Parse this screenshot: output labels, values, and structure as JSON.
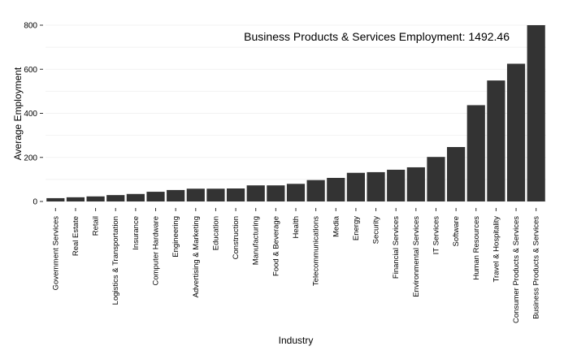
{
  "chart_data": {
    "type": "bar",
    "title": "",
    "xlabel": "Industry",
    "ylabel": "Average Employment",
    "ylim": [
      -30,
      830
    ],
    "yticks": [
      0,
      200,
      400,
      600,
      800
    ],
    "ytick_labels": [
      "0",
      "200",
      "400",
      "600",
      "800"
    ],
    "grid": true,
    "annotation": "Business Products & Services Employment: 1492.46",
    "bar_color": "#333333",
    "categories": [
      "Government Services",
      "Real Estate",
      "Retail",
      "Logistics & Transportation",
      "Insurance",
      "Computer Hardware",
      "Engineering",
      "Advertising & Marketing",
      "Education",
      "Construction",
      "Manufacturing",
      "Food & Beverage",
      "Health",
      "Telecommunications",
      "Media",
      "Energy",
      "Security",
      "Financial Services",
      "Environmental Services",
      "IT Services",
      "Software",
      "Human Resources",
      "Travel & Hospitality",
      "Consumer Products & Services",
      "Business Products & Services"
    ],
    "values": [
      15,
      19,
      23,
      29,
      34,
      44,
      52,
      58,
      58,
      59,
      73,
      73,
      80,
      97,
      107,
      130,
      133,
      144,
      155,
      202,
      247,
      437,
      549,
      625,
      800
    ]
  }
}
